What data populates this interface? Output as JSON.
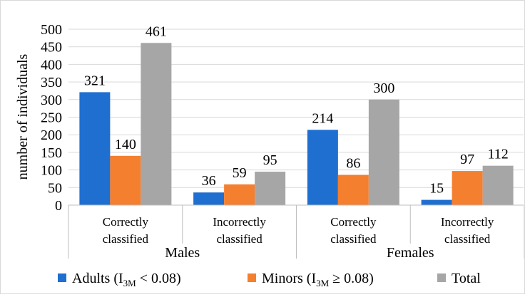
{
  "chart_data": {
    "type": "bar",
    "title": "",
    "ylabel": "number of individuals",
    "xlabel": "",
    "ylim": [
      0,
      500
    ],
    "yticks": [
      0,
      50,
      100,
      150,
      200,
      250,
      300,
      350,
      400,
      450,
      500
    ],
    "grid": true,
    "groups": [
      {
        "name": "Males",
        "categories": [
          {
            "label_line1": "Correctly",
            "label_line2": "classified"
          },
          {
            "label_line1": "Incorrectly",
            "label_line2": "classified"
          }
        ]
      },
      {
        "name": "Females",
        "categories": [
          {
            "label_line1": "Correctly",
            "label_line2": "classified"
          },
          {
            "label_line1": "Incorrectly",
            "label_line2": "classified"
          }
        ]
      }
    ],
    "series": [
      {
        "name": "Adults",
        "legend_prefix": "Adults (I",
        "legend_sub": "3M",
        "legend_suffix": " < 0.08)",
        "color": "#1f6fd0",
        "values": [
          321,
          36,
          214,
          15
        ]
      },
      {
        "name": "Minors",
        "legend_prefix": "Minors (I",
        "legend_sub": "3M",
        "legend_suffix": " ≥ 0.08)",
        "color": "#f47f2f",
        "values": [
          140,
          59,
          86,
          97
        ]
      },
      {
        "name": "Total",
        "legend_prefix": "Total",
        "legend_sub": "",
        "legend_suffix": "",
        "color": "#a6a6a6",
        "values": [
          461,
          95,
          300,
          112
        ]
      }
    ],
    "legend_position": "bottom"
  }
}
